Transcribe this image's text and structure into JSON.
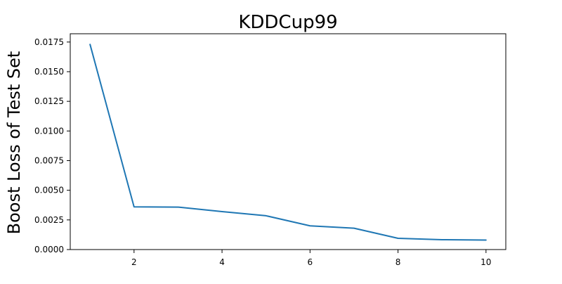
{
  "chart_data": {
    "type": "line",
    "title": "KDDCup99",
    "xlabel": "",
    "ylabel": "Boost Loss of Test Set",
    "xlim": [
      0.55,
      10.45
    ],
    "ylim": [
      0,
      0.0182
    ],
    "x_ticks": [
      2,
      4,
      6,
      8,
      10
    ],
    "x_tick_labels": [
      "2",
      "4",
      "6",
      "8",
      "10"
    ],
    "y_ticks": [
      0,
      0.0025,
      0.005,
      0.0075,
      0.01,
      0.0125,
      0.015,
      0.0175
    ],
    "y_tick_labels": [
      "0.0000",
      "0.0025",
      "0.0050",
      "0.0075",
      "0.0100",
      "0.0125",
      "0.0150",
      "0.0175"
    ],
    "grid": false,
    "series": [
      {
        "color": "#1f77b4",
        "x": [
          1,
          2,
          3,
          4,
          5,
          6,
          7,
          8,
          9,
          10
        ],
        "y": [
          0.0173,
          0.0036,
          0.00358,
          0.0032,
          0.00285,
          0.002,
          0.0018,
          0.00095,
          0.00083,
          0.0008
        ]
      }
    ]
  }
}
